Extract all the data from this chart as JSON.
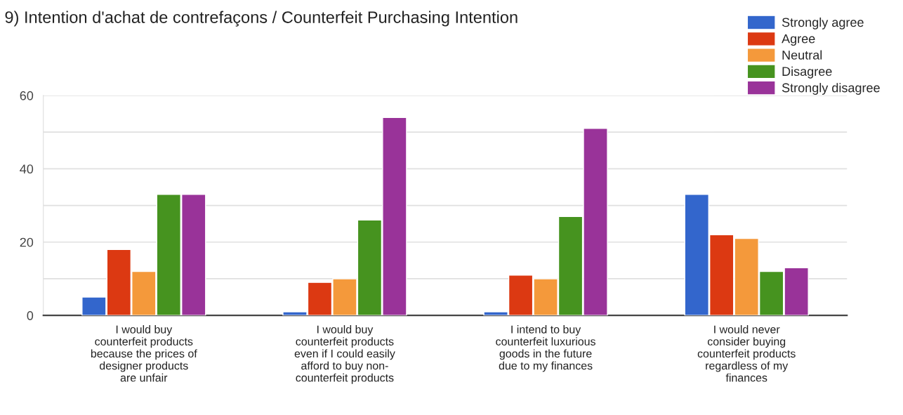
{
  "chart_data": {
    "type": "bar",
    "title": "9) Intention d'achat de contrefaçons / Counterfeit Purchasing Intention",
    "categories": [
      "I would buy\ncounterfeit products\nbecause the prices of\ndesigner products\nare unfair",
      "I would buy\ncounterfeit products\neven if I could easily\nafford to buy non-\ncounterfeit products",
      "I intend to buy\ncounterfeit luxurious\ngoods in the future\ndue to my finances",
      "I would never\nconsider buying\ncounterfeit products\nregardless of my\nfinances"
    ],
    "series": [
      {
        "name": "Strongly agree",
        "color": "#3366cc",
        "values": [
          5,
          1,
          1,
          33
        ]
      },
      {
        "name": "Agree",
        "color": "#dc3912",
        "values": [
          18,
          9,
          11,
          22
        ]
      },
      {
        "name": "Neutral",
        "color": "#f4993b",
        "values": [
          12,
          10,
          10,
          21
        ]
      },
      {
        "name": "Disagree",
        "color": "#46931f",
        "values": [
          33,
          26,
          27,
          12
        ]
      },
      {
        "name": "Strongly disagree",
        "color": "#993399",
        "values": [
          33,
          54,
          51,
          13
        ]
      }
    ],
    "ylim": [
      0,
      60
    ],
    "yticks": [
      0,
      {
        "value": 10,
        "label": null
      },
      20,
      {
        "value": 30,
        "label": null
      },
      40,
      {
        "value": 50,
        "label": null
      },
      60
    ],
    "grid": "y",
    "legend": "top right"
  }
}
